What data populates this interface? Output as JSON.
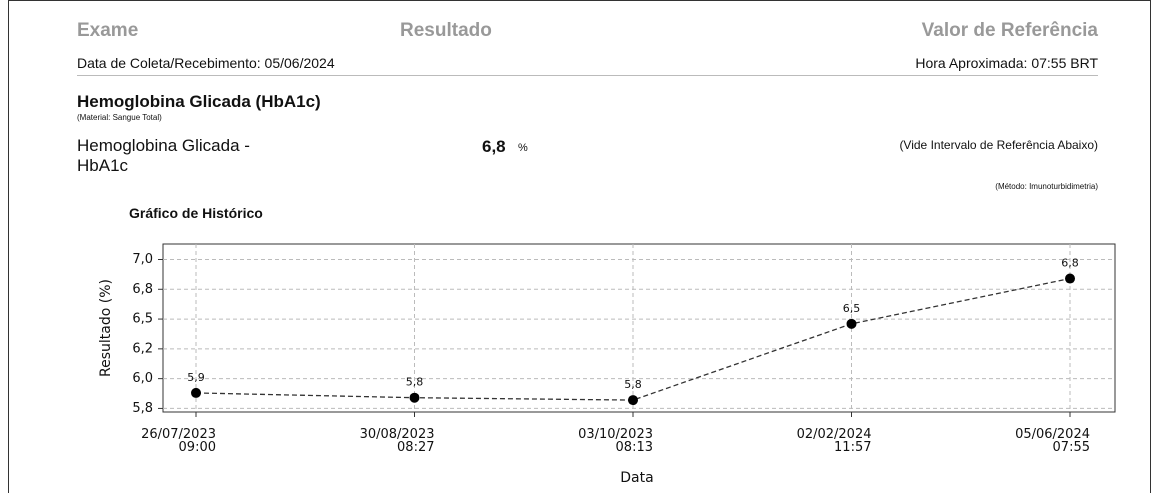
{
  "header": {
    "col_exam": "Exame",
    "col_result": "Resultado",
    "col_reference": "Valor de Referência",
    "collection": "Data de Coleta/Recebimento: 05/06/2024",
    "time": "Hora Aproximada: 07:55 BRT"
  },
  "exam": {
    "title": "Hemoglobina Glicada (HbA1c)",
    "material": "(Material: Sangue Total)",
    "name": "Hemoglobina Glicada -\nHbA1c",
    "value": "6,8",
    "unit": "%",
    "reference": "(Vide Intervalo de Referência Abaixo)",
    "method": "(Método: Imunoturbidimetria)"
  },
  "chart_data": {
    "type": "line",
    "title": "Gráfico de Histórico",
    "x_label": "Data",
    "y_label": "Resultado (%)",
    "categories": [
      "26/07/2023\n09:00",
      "30/08/2023\n08:27",
      "03/10/2023\n08:13",
      "02/02/2024\n11:57",
      "05/06/2024\n07:55"
    ],
    "values": [
      5.88,
      5.84,
      5.82,
      6.46,
      6.84
    ],
    "value_labels": [
      "5,9",
      "5,8",
      "5,8",
      "6,5",
      "6,8"
    ],
    "color": "#333333",
    "ylim": [
      5.72,
      7.13
    ],
    "yticks": [
      {
        "value": 5.75,
        "label": "5,8"
      },
      {
        "value": 6.0,
        "label": "6,0"
      },
      {
        "value": 6.25,
        "label": "6,2"
      },
      {
        "value": 6.5,
        "label": "6,5"
      },
      {
        "value": 6.75,
        "label": "6,8"
      },
      {
        "value": 7.0,
        "label": "7,0"
      }
    ],
    "grid": true
  }
}
